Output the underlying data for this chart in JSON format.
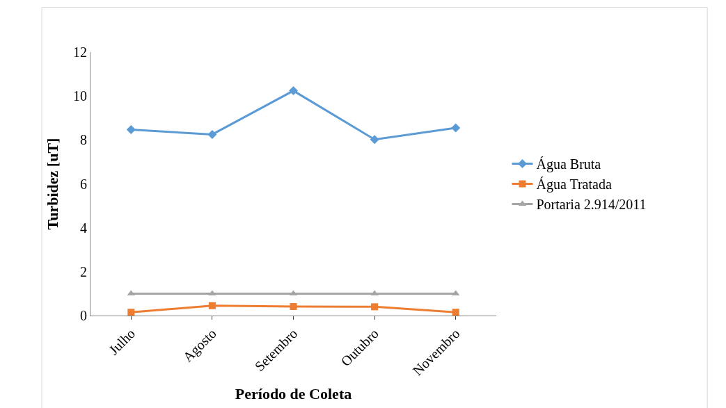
{
  "chart_data": {
    "type": "line",
    "xlabel": "Período de Coleta",
    "ylabel": "Turbidez [uT]",
    "categories": [
      "Julho",
      "Agosto",
      "Setembro",
      "Outubro",
      "Novembro"
    ],
    "series": [
      {
        "name": "Água Bruta",
        "color": "#5b9bd5",
        "marker": "diamond",
        "values": [
          8.47,
          8.25,
          10.24,
          8.02,
          8.55
        ]
      },
      {
        "name": "Água Tratada",
        "color": "#ed7d31",
        "marker": "square",
        "values": [
          0.15,
          0.45,
          0.41,
          0.4,
          0.15
        ]
      },
      {
        "name": "Portaria 2.914/2011",
        "color": "#a5a5a5",
        "marker": "triangle",
        "values": [
          1,
          1,
          1,
          1,
          1
        ]
      }
    ],
    "ylim": [
      0,
      12
    ],
    "yticks": [
      0,
      2,
      4,
      6,
      8,
      10,
      12
    ],
    "legend": "right",
    "line_style": "solid"
  }
}
